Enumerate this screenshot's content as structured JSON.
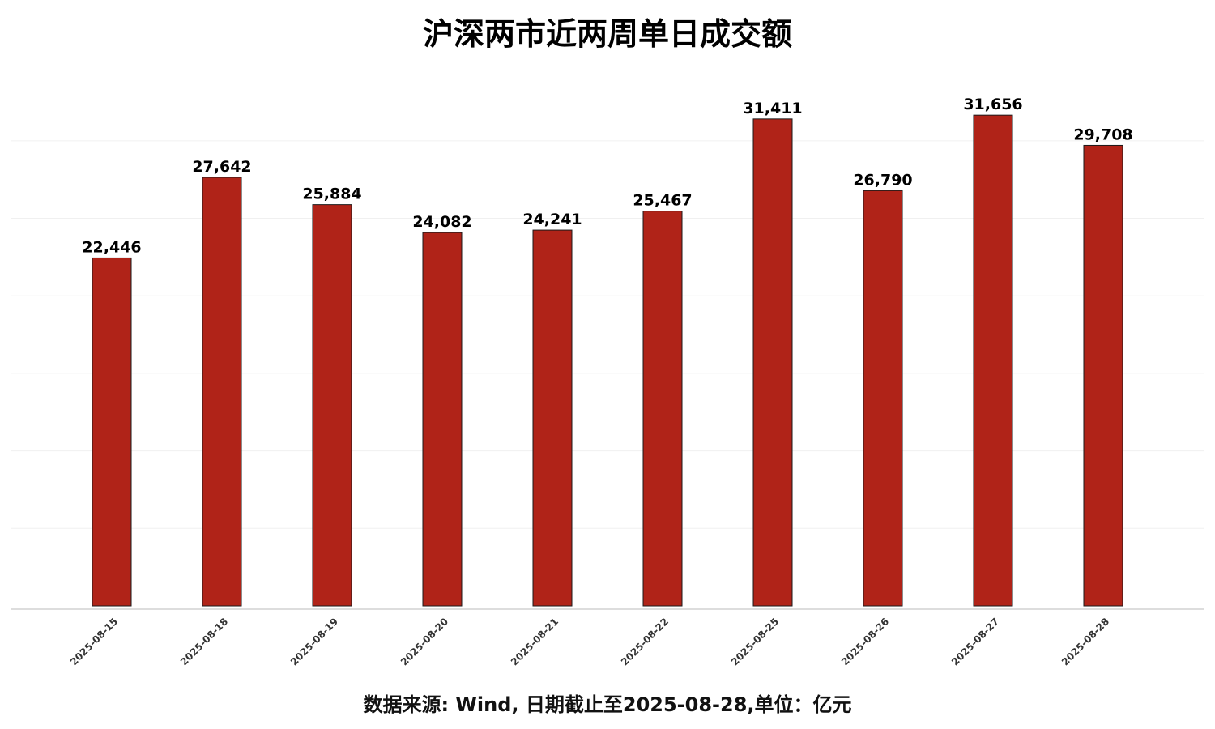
{
  "chart_data": {
    "type": "bar",
    "title": "沪深两市近两周单日成交额",
    "categories": [
      "2025-08-15",
      "2025-08-18",
      "2025-08-19",
      "2025-08-20",
      "2025-08-21",
      "2025-08-22",
      "2025-08-25",
      "2025-08-26",
      "2025-08-27",
      "2025-08-28"
    ],
    "values": [
      22446,
      27642,
      25884,
      24082,
      24241,
      25467,
      31411,
      26790,
      31656,
      29708
    ],
    "value_labels": [
      "22,446",
      "27,642",
      "25,884",
      "24,082",
      "24,241",
      "25,467",
      "31,411",
      "26,790",
      "31,656",
      "29,708"
    ],
    "xlabel": "",
    "ylabel": "",
    "ylim": [
      0,
      30000
    ],
    "grid": true,
    "legend": "none",
    "footnote": "数据来源: Wind, 日期截止至2025-08-28,单位：亿元",
    "colors": {
      "bar_fill": "#b02318",
      "bar_edge": "#1a1a1a",
      "grid": "#f0f0f0",
      "axis": "#bbbbbb"
    }
  }
}
